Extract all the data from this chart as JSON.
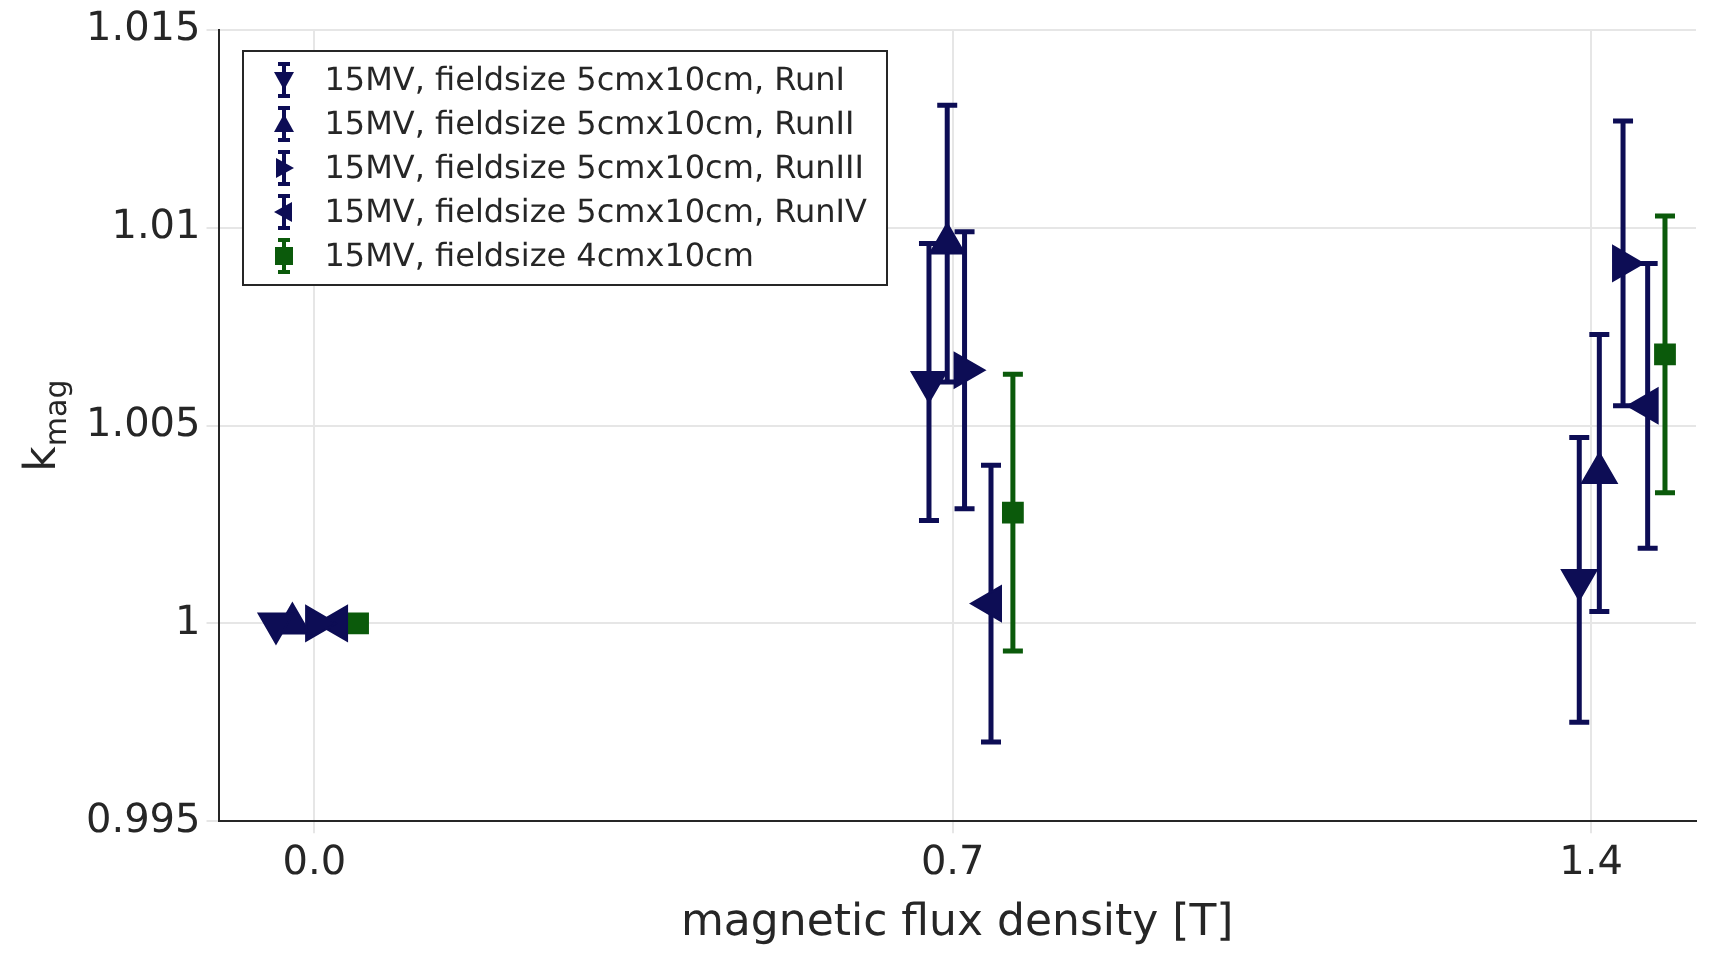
{
  "chart_data": {
    "type": "scatter",
    "xlabel": "magnetic flux density [T]",
    "ylabel": "k$_{mag}$",
    "xlim": [
      -0.105,
      1.515
    ],
    "xticks": [
      {
        "value": 0,
        "label": "0.0"
      },
      {
        "value": 0.7,
        "label": "0.7"
      },
      {
        "value": 1.4,
        "label": "1.4"
      }
    ],
    "ylim": [
      0.995,
      1.015
    ],
    "yticks": [
      0.995,
      1,
      1.005,
      1.01,
      1.015
    ],
    "grid": true,
    "legend": "top left",
    "series": [
      {
        "name": "15MV, fieldsize 5cmx10cm, RunI",
        "color": "#0d0d55",
        "marker": "triangle_down",
        "x": [
          -0.042,
          0.674,
          1.387
        ],
        "values": [
          1,
          1.0061,
          1.0011
        ],
        "errors": [
          null,
          0.0035,
          0.0036
        ]
      },
      {
        "name": "15MV, fieldsize 5cmx10cm, RunII",
        "color": "#0d0d55",
        "marker": "triangle",
        "x": [
          -0.024,
          0.694,
          1.409
        ],
        "values": [
          1,
          1.0096,
          1.0038
        ],
        "errors": [
          null,
          0.0035,
          0.0035
        ]
      },
      {
        "name": "15MV, fieldsize 5cmx10cm, RunIII",
        "color": "#0d0d55",
        "marker": "triangle_right",
        "x": [
          0.002,
          0.713,
          1.435
        ],
        "values": [
          1,
          1.0064,
          1.0091
        ],
        "errors": [
          null,
          0.0035,
          0.0036
        ]
      },
      {
        "name": "15MV, fieldsize 5cmx10cm, RunIV",
        "color": "#0d0d55",
        "marker": "triangle_left",
        "x": [
          0.025,
          0.742,
          1.462
        ],
        "values": [
          1,
          1.0005,
          1.0055
        ],
        "errors": [
          null,
          0.0035,
          0.0036
        ]
      },
      {
        "name": "15MV, fieldsize 4cmx10cm",
        "color": "#0b5a0b",
        "marker": "square",
        "x": [
          0.048,
          0.766,
          1.481
        ],
        "values": [
          1,
          1.0028,
          1.0068
        ],
        "errors": [
          null,
          0.0035,
          0.0035
        ]
      }
    ]
  }
}
